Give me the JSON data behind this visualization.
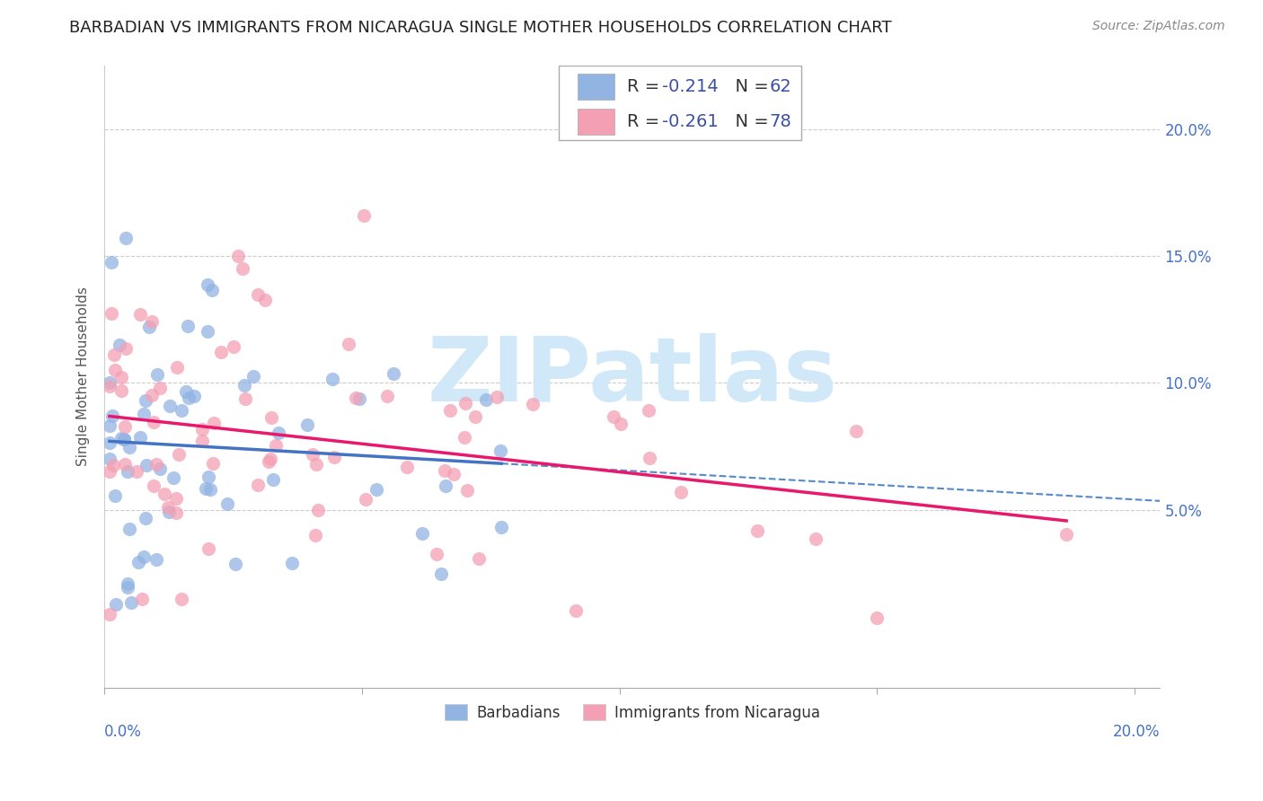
{
  "title": "BARBADIAN VS IMMIGRANTS FROM NICARAGUA SINGLE MOTHER HOUSEHOLDS CORRELATION CHART",
  "source": "Source: ZipAtlas.com",
  "ylabel": "Single Mother Households",
  "xlim": [
    0.0,
    0.205
  ],
  "ylim": [
    -0.02,
    0.225
  ],
  "color_barbadian": "#92b4e3",
  "color_nicaragua": "#f4a0b4",
  "color_line_barbadian": "#4472c4",
  "color_line_nicaragua": "#e8196c",
  "color_line_dashed": "#5588cc",
  "watermark_color": "#d0e8f8",
  "background_color": "#ffffff",
  "R_barbadian": -0.214,
  "N_barbadian": 62,
  "R_nicaragua": -0.261,
  "N_nicaragua": 78,
  "legend_color": "#3b4fa8",
  "yticks": [
    0.05,
    0.1,
    0.15,
    0.2
  ],
  "ytick_labels": [
    "5.0%",
    "10.0%",
    "15.0%",
    "20.0%"
  ],
  "xtick_label_left": "0.0%",
  "xtick_label_right": "20.0%",
  "title_fontsize": 13,
  "source_fontsize": 10,
  "ytick_fontsize": 12,
  "xtick_fontsize": 12
}
